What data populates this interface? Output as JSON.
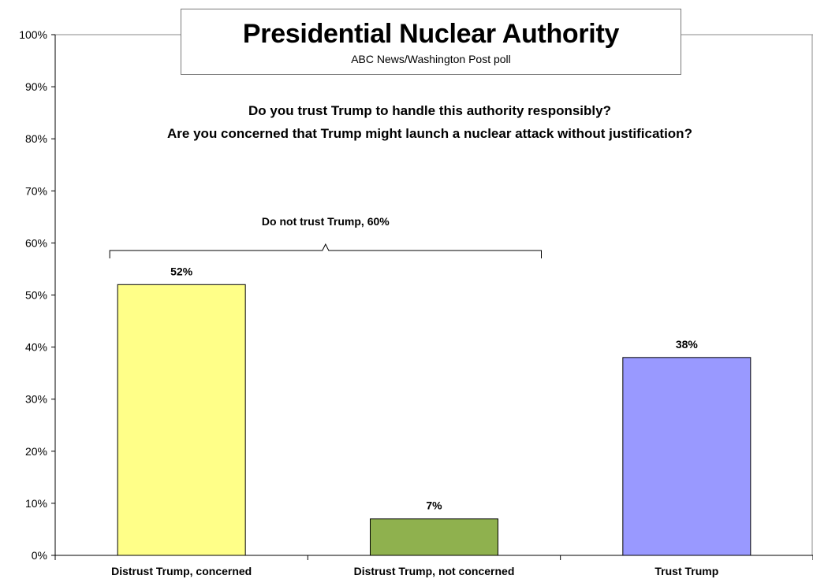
{
  "chart_data": {
    "type": "bar",
    "title": "Presidential Nuclear Authority",
    "subtitle": "ABC News/Washington  Post poll",
    "questions": [
      "Do you trust Trump to handle this authority responsibly?",
      "Are you concerned that Trump might launch a nuclear attack without justification?"
    ],
    "categories": [
      "Distrust Trump, concerned",
      "Distrust Trump, not concerned",
      "Trust Trump"
    ],
    "values": [
      52,
      7,
      38
    ],
    "value_labels": [
      "52%",
      "7%",
      "38%"
    ],
    "colors": [
      "#ffff88",
      "#8fb14e",
      "#9999ff"
    ],
    "ylim": [
      0,
      100
    ],
    "yticks": [
      "0%",
      "10%",
      "20%",
      "30%",
      "40%",
      "50%",
      "60%",
      "70%",
      "80%",
      "90%",
      "100%"
    ],
    "grid": false,
    "annotation": {
      "text": "Do not trust Trump, 60%",
      "spans": [
        0,
        1
      ]
    }
  }
}
